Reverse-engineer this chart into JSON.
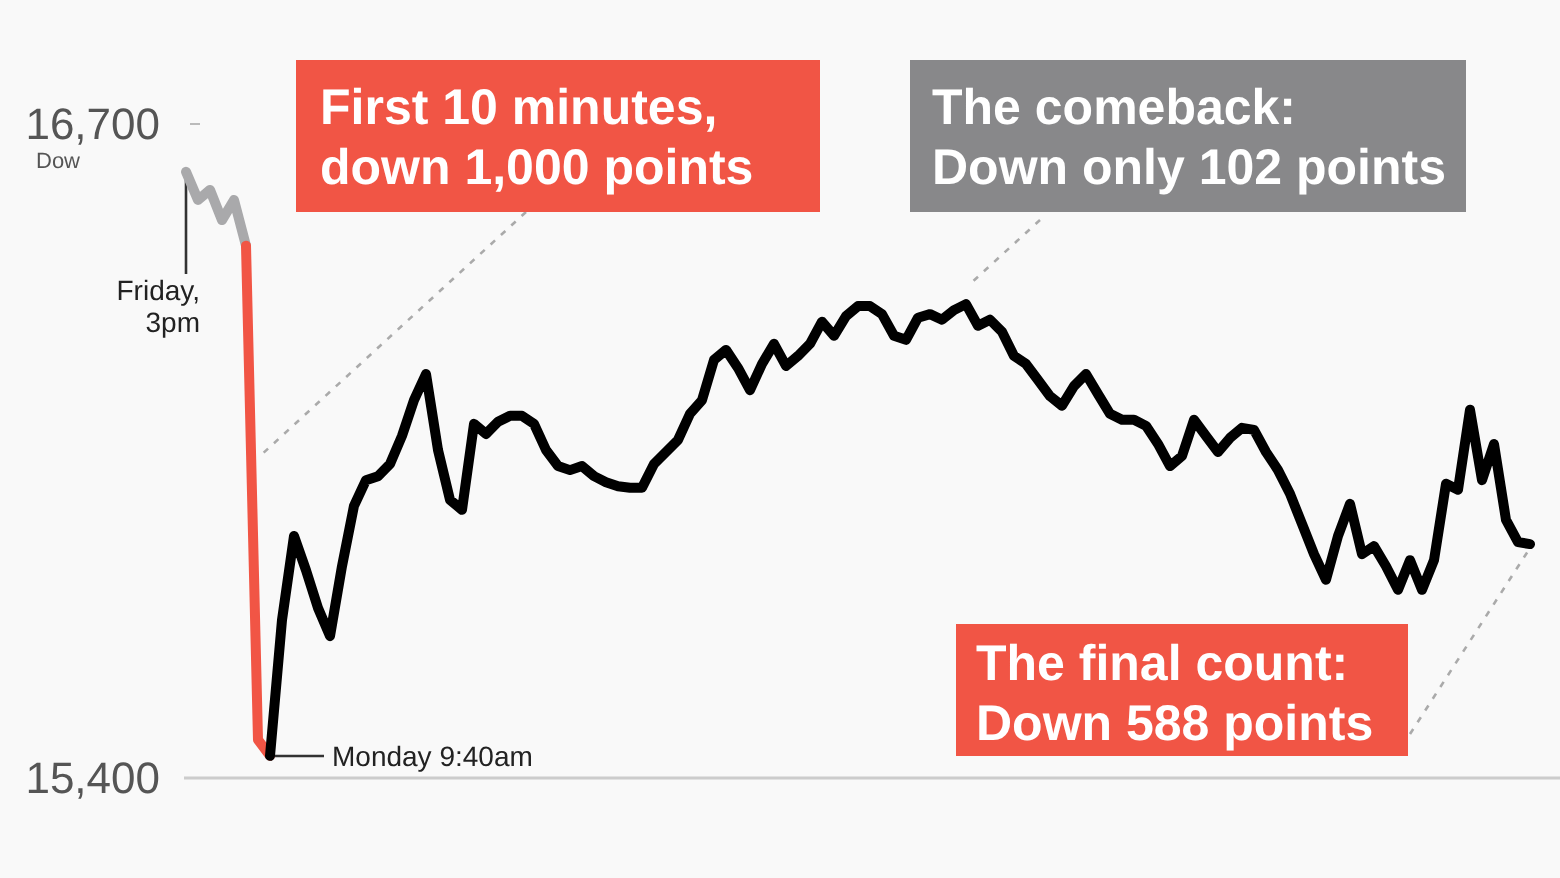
{
  "chart_data": {
    "type": "line",
    "ylabel": "Dow",
    "ylim": [
      15400,
      16700
    ],
    "yticks": [
      {
        "value": 16700,
        "label": "16,700"
      },
      {
        "value": 15400,
        "label": "15,400"
      }
    ],
    "tick_labels": "y",
    "grid": false,
    "marker": "none",
    "line_style": "solid",
    "categories": [
      null,
      null,
      null,
      null,
      null,
      null,
      null,
      null,
      null,
      null,
      null,
      null,
      null,
      null,
      null,
      null,
      null,
      null,
      null,
      null,
      null,
      null,
      null,
      null,
      null,
      null,
      null,
      null,
      null,
      null,
      null,
      null,
      null,
      null,
      null,
      null,
      null,
      null,
      null,
      null,
      null,
      null,
      null,
      null,
      null,
      null,
      null,
      null,
      null,
      null,
      null,
      null,
      null,
      null,
      null,
      null,
      null,
      null,
      null,
      null,
      null,
      null,
      null,
      null,
      null,
      null,
      null,
      null,
      null,
      null,
      null,
      null,
      null,
      null,
      null,
      null,
      null,
      null,
      null,
      null,
      null,
      null,
      null,
      null,
      null,
      null,
      null,
      null,
      null,
      null,
      null,
      null,
      null,
      null,
      null,
      null,
      null,
      null,
      null,
      null,
      null,
      null,
      null,
      null,
      null,
      null,
      null,
      null,
      null,
      null,
      null,
      null,
      null
    ],
    "series": [
      {
        "color": "#a9a9ab",
        "values": [
          16605,
          16549,
          16569,
          16509,
          16549,
          16458,
          null,
          null,
          null,
          null,
          null,
          null,
          null,
          null,
          null,
          null,
          null,
          null,
          null,
          null,
          null,
          null,
          null,
          null,
          null,
          null,
          null,
          null,
          null,
          null,
          null,
          null,
          null,
          null,
          null,
          null,
          null,
          null,
          null,
          null,
          null,
          null,
          null,
          null,
          null,
          null,
          null,
          null,
          null,
          null,
          null,
          null,
          null,
          null,
          null,
          null,
          null,
          null,
          null,
          null,
          null,
          null,
          null,
          null,
          null,
          null,
          null,
          null,
          null,
          null,
          null,
          null,
          null,
          null,
          null,
          null,
          null,
          null,
          null,
          null,
          null,
          null,
          null,
          null,
          null,
          null,
          null,
          null,
          null,
          null,
          null,
          null,
          null,
          null,
          null,
          null,
          null,
          null,
          null,
          null,
          null,
          null,
          null,
          null,
          null,
          null,
          null,
          null,
          null,
          null,
          null,
          null,
          null
        ]
      },
      {
        "color": "#f15545",
        "values": [
          null,
          null,
          null,
          null,
          null,
          16458,
          15476,
          15444,
          null,
          null,
          null,
          null,
          null,
          null,
          null,
          null,
          null,
          null,
          null,
          null,
          null,
          null,
          null,
          null,
          null,
          null,
          null,
          null,
          null,
          null,
          null,
          null,
          null,
          null,
          null,
          null,
          null,
          null,
          null,
          null,
          null,
          null,
          null,
          null,
          null,
          null,
          null,
          null,
          null,
          null,
          null,
          null,
          null,
          null,
          null,
          null,
          null,
          null,
          null,
          null,
          null,
          null,
          null,
          null,
          null,
          null,
          null,
          null,
          null,
          null,
          null,
          null,
          null,
          null,
          null,
          null,
          null,
          null,
          null,
          null,
          null,
          null,
          null,
          null,
          null,
          null,
          null,
          null,
          null,
          null,
          null,
          null,
          null,
          null,
          null,
          null,
          null,
          null,
          null,
          null,
          null,
          null,
          null,
          null,
          null,
          null,
          null,
          null,
          null,
          null,
          null,
          null,
          null
        ]
      },
      {
        "color": "#000000",
        "values": [
          null,
          null,
          null,
          null,
          null,
          null,
          null,
          15444,
          15714,
          15881,
          15813,
          15738,
          15682,
          15821,
          15941,
          15992,
          16000,
          16024,
          16080,
          16151,
          16203,
          16052,
          15953,
          15933,
          16104,
          16084,
          16108,
          16120,
          16120,
          16104,
          16052,
          16020,
          16012,
          16020,
          16000,
          15988,
          15980,
          15977,
          15977,
          16024,
          16048,
          16072,
          16124,
          16151,
          16231,
          16251,
          16215,
          16171,
          16223,
          16263,
          16219,
          16239,
          16263,
          16307,
          16279,
          16318,
          16338,
          16338,
          16322,
          16279,
          16271,
          16315,
          16322,
          16311,
          16330,
          16342,
          16299,
          16311,
          16287,
          16239,
          16223,
          16191,
          16159,
          16140,
          16179,
          16203,
          16163,
          16124,
          16112,
          16112,
          16100,
          16064,
          16020,
          16040,
          16112,
          16080,
          16048,
          16076,
          16096,
          16092,
          16048,
          16012,
          15965,
          15905,
          15845,
          15794,
          15881,
          15945,
          15845,
          15861,
          15821,
          15774,
          15833,
          15774,
          15833,
          15985,
          15973,
          16132,
          15992,
          16064,
          15913,
          15869,
          15865
        ]
      }
    ],
    "annotations": [
      "First 10 minutes,\ndown 1,000 points",
      "The comeback:\nDown only 102 points",
      "The final count:\nDown 588 points",
      "Friday,\n3pm",
      "Monday 9:40am"
    ]
  }
}
